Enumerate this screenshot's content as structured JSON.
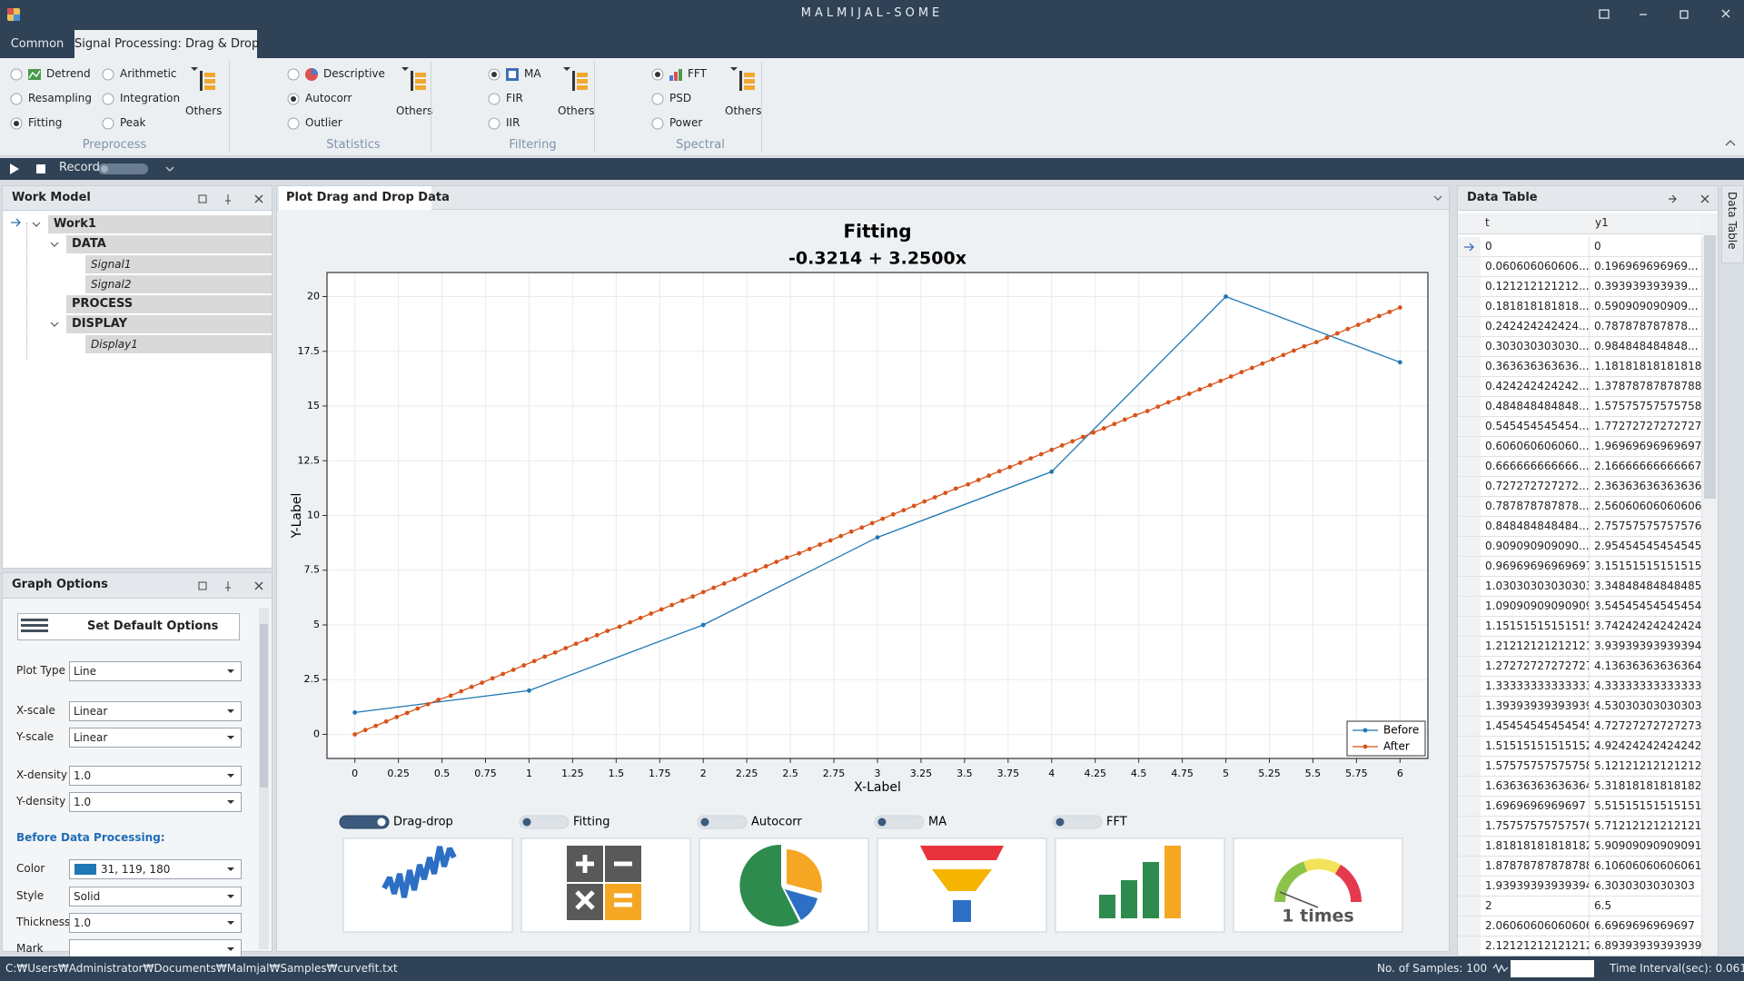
{
  "window": {
    "title": "MALMIJAL-SOME"
  },
  "tabs": {
    "items": [
      "Common",
      "Signal Processing: Drag & Drop"
    ],
    "active": 1
  },
  "ribbon": {
    "groups": [
      {
        "name": "Preprocess",
        "items": [
          "Detrend",
          "Arithmetic",
          "Resampling",
          "Integration",
          "Fitting",
          "Peak"
        ],
        "selected": 4,
        "more": "Others"
      },
      {
        "name": "Statistics",
        "items": [
          "Descriptive",
          "Autocorr",
          "Outlier"
        ],
        "selected": 1,
        "more": "Others"
      },
      {
        "name": "Filtering",
        "items": [
          "MA",
          "FIR",
          "IIR"
        ],
        "selected": 0,
        "more": "Others"
      },
      {
        "name": "Spectral",
        "items": [
          "FFT",
          "PSD",
          "Power"
        ],
        "selected": 0,
        "more": "Others"
      }
    ]
  },
  "toolbar": {
    "record": "Record"
  },
  "work_model": {
    "title": "Work Model",
    "tree": [
      {
        "label": "Work1",
        "level": 0
      },
      {
        "label": "DATA",
        "level": 1
      },
      {
        "label": "Signal1",
        "level": 2
      },
      {
        "label": "Signal2",
        "level": 2
      },
      {
        "label": "PROCESS",
        "level": 1
      },
      {
        "label": "DISPLAY",
        "level": 1
      },
      {
        "label": "Display1",
        "level": 2
      }
    ]
  },
  "graph_options": {
    "title": "Graph Options",
    "button": "Set Default Options",
    "fields": [
      {
        "label": "Plot Type",
        "value": "Line"
      },
      {
        "label": "X-scale",
        "value": "Linear"
      },
      {
        "label": "Y-scale",
        "value": "Linear"
      },
      {
        "label": "X-density",
        "value": "1.0"
      },
      {
        "label": "Y-density",
        "value": "1.0"
      }
    ],
    "section": "Before Data Processing:",
    "section_fields": [
      {
        "label": "Color",
        "value": "31, 119, 180",
        "swatch": "#1f77b4"
      },
      {
        "label": "Style",
        "value": "Solid"
      },
      {
        "label": "Thickness",
        "value": "1.0"
      },
      {
        "label": "Mark"
      }
    ]
  },
  "plot_panel": {
    "tab": "Plot Drag and Drop Data"
  },
  "plot": {
    "type": "line",
    "title": "Fitting",
    "subtitle": "-0.3214 + 3.2500x",
    "xlabel": "X-Label",
    "ylabel": "Y-Label",
    "xlim": [
      -0.16,
      6.16
    ],
    "ylim": [
      -1.1,
      21.1
    ],
    "xticks": [
      0,
      0.25,
      0.5,
      0.75,
      1,
      1.25,
      1.5,
      1.75,
      2,
      2.25,
      2.5,
      2.75,
      3,
      3.25,
      3.5,
      3.75,
      4,
      4.25,
      4.5,
      4.75,
      5,
      5.25,
      5.5,
      5.75,
      6
    ],
    "yticks": [
      0,
      2.5,
      5,
      7.5,
      10,
      12.5,
      15,
      17.5,
      20
    ],
    "grid": true,
    "legend": "lower right",
    "series": [
      {
        "name": "Before",
        "color": "#1f77b4",
        "x": [
          0,
          1,
          2,
          3,
          4,
          5,
          6
        ],
        "values": [
          1,
          2,
          5,
          9,
          12,
          20,
          17
        ]
      },
      {
        "name": "After",
        "color": "#d95319",
        "x": [
          0,
          0.06,
          0.12,
          0.18,
          0.24,
          0.3,
          0.36,
          0.42,
          0.48,
          0.55,
          0.61,
          0.67,
          0.73,
          0.79,
          0.85,
          0.91,
          0.97,
          1.03,
          1.09,
          1.15,
          1.21,
          1.27,
          1.33,
          1.39,
          1.45,
          1.52,
          1.58,
          1.64,
          1.7,
          1.76,
          1.82,
          1.88,
          1.94,
          2,
          2.06,
          2.12,
          2.18,
          2.24,
          2.3,
          2.36,
          2.42,
          2.48,
          2.55,
          2.61,
          2.67,
          2.73,
          2.79,
          2.85,
          2.91,
          2.97,
          3.03,
          3.09,
          3.15,
          3.21,
          3.27,
          3.33,
          3.39,
          3.45,
          3.52,
          3.58,
          3.64,
          3.7,
          3.76,
          3.82,
          3.88,
          3.94,
          4,
          4.06,
          4.12,
          4.18,
          4.24,
          4.3,
          4.36,
          4.42,
          4.48,
          4.55,
          4.61,
          4.67,
          4.73,
          4.79,
          4.85,
          4.91,
          4.97,
          5.03,
          5.09,
          5.15,
          5.21,
          5.27,
          5.33,
          5.39,
          5.45,
          5.52,
          5.58,
          5.64,
          5.7,
          5.76,
          5.82,
          5.88,
          5.94,
          6
        ],
        "values": [
          0,
          0.2,
          0.39,
          0.59,
          0.79,
          0.98,
          1.18,
          1.38,
          1.58,
          1.77,
          1.97,
          2.17,
          2.36,
          2.56,
          2.76,
          2.95,
          3.15,
          3.35,
          3.55,
          3.74,
          3.94,
          4.14,
          4.33,
          4.53,
          4.73,
          4.92,
          5.12,
          5.32,
          5.52,
          5.71,
          5.91,
          6.11,
          6.3,
          6.5,
          6.7,
          6.89,
          7.09,
          7.29,
          7.48,
          7.68,
          7.88,
          8.08,
          8.27,
          8.47,
          8.67,
          8.86,
          9.06,
          9.26,
          9.45,
          9.65,
          9.85,
          10.05,
          10.24,
          10.44,
          10.64,
          10.83,
          11.03,
          11.23,
          11.42,
          11.62,
          11.82,
          12.02,
          12.21,
          12.41,
          12.61,
          12.8,
          13.0,
          13.2,
          13.39,
          13.59,
          13.79,
          13.98,
          14.18,
          14.38,
          14.58,
          14.77,
          14.97,
          15.17,
          15.36,
          15.56,
          15.76,
          15.95,
          16.15,
          16.35,
          16.55,
          16.74,
          16.94,
          17.14,
          17.33,
          17.53,
          17.73,
          17.92,
          18.12,
          18.32,
          18.52,
          18.71,
          18.91,
          19.11,
          19.3,
          19.5
        ]
      }
    ]
  },
  "toggles": [
    {
      "label": "Drag-drop",
      "on": true
    },
    {
      "label": "Fitting",
      "on": false
    },
    {
      "label": "Autocorr",
      "on": false
    },
    {
      "label": "MA",
      "on": false
    },
    {
      "label": "FFT",
      "on": false
    }
  ],
  "gauge": {
    "label": "1 times"
  },
  "data_table": {
    "title": "Data Table",
    "side_tab": "Data Table",
    "columns": [
      "t",
      "y1"
    ],
    "rows": [
      [
        "0",
        "0"
      ],
      [
        "0.060606060606...",
        "0.196969696969..."
      ],
      [
        "0.121212121212...",
        "0.393939393939..."
      ],
      [
        "0.181818181818...",
        "0.590909090909..."
      ],
      [
        "0.242424242424...",
        "0.787878787878..."
      ],
      [
        "0.303030303030...",
        "0.984848484848..."
      ],
      [
        "0.363636363636...",
        "1.18181818181818"
      ],
      [
        "0.424242424242...",
        "1.37878787878788"
      ],
      [
        "0.484848484848...",
        "1.57575757575758"
      ],
      [
        "0.545454545454...",
        "1.77272727272727"
      ],
      [
        "0.606060606060...",
        "1.96969696969697"
      ],
      [
        "0.666666666666...",
        "2.16666666666667"
      ],
      [
        "0.727272727272...",
        "2.36363636363636"
      ],
      [
        "0.787878787878...",
        "2.56060606060606"
      ],
      [
        "0.848484848484...",
        "2.75757575757576"
      ],
      [
        "0.909090909090...",
        "2.95454545454545"
      ],
      [
        "0.96969696969697",
        "3.15151515151515"
      ],
      [
        "1.03030303030303",
        "3.34848484848485"
      ],
      [
        "1.09090909090909",
        "3.54545454545454"
      ],
      [
        "1.15151515151515",
        "3.74242424242424"
      ],
      [
        "1.21212121212121",
        "3.93939393939394"
      ],
      [
        "1.27272727272727",
        "4.13636363636364"
      ],
      [
        "1.33333333333333",
        "4.33333333333333"
      ],
      [
        "1.39393939393939",
        "4.53030303030303"
      ],
      [
        "1.45454545454545",
        "4.72727272727273"
      ],
      [
        "1.51515151515152",
        "4.92424242424242"
      ],
      [
        "1.57575757575758",
        "5.12121212121212"
      ],
      [
        "1.63636363636364",
        "5.31818181818182"
      ],
      [
        "1.6969696969697",
        "5.51515151515151"
      ],
      [
        "1.75757575757576",
        "5.71212121212121"
      ],
      [
        "1.81818181818182",
        "5.90909090909091"
      ],
      [
        "1.87878787878788",
        "6.10606060606061"
      ],
      [
        "1.93939393939394",
        "6.3030303030303"
      ],
      [
        "2",
        "6.5"
      ],
      [
        "2.06060606060606",
        "6.6969696969697"
      ],
      [
        "2.12121212121212",
        "6.89393939393939"
      ]
    ]
  },
  "status": {
    "path": "C:₩Users₩Administrator₩Documents₩Malmjal₩Samples₩curvefit.txt",
    "samples": "No. of Samples: 100",
    "interval": "Time Interval(sec): 0.061"
  }
}
